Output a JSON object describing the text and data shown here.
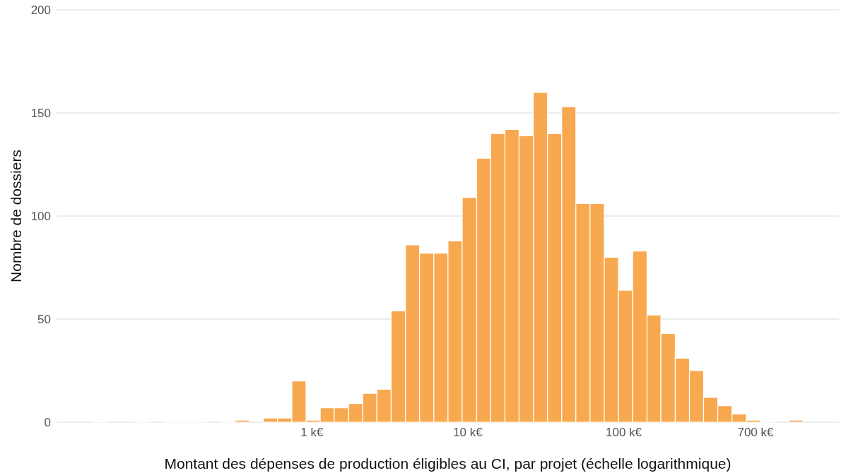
{
  "chart_data": {
    "type": "histogram",
    "xlabel": "Montant des dépenses de production éligibles au CI, par projet (échelle logarithmique)",
    "ylabel": "Nombre de dossiers",
    "bins": [
      39.4,
      48.6,
      73.9,
      91.1,
      112,
      139,
      171,
      211,
      260,
      321,
      396,
      488,
      602,
      743,
      916,
      1130,
      1390,
      1720,
      2120,
      2610,
      3220,
      3980,
      4900,
      6050,
      7460,
      9200,
      11400,
      14000,
      17300,
      21300,
      26300,
      32400,
      40000,
      49300,
      60800,
      75000,
      92500,
      114000,
      141000,
      173000,
      214000,
      264000,
      325000,
      401000,
      495000,
      611000,
      753000,
      929000,
      1150000,
      1410000
    ],
    "values": [
      0.3,
      0,
      0.3,
      0,
      0.3,
      0.3,
      0.3,
      0,
      0.3,
      1,
      0,
      2,
      2,
      20,
      1,
      7,
      7,
      9,
      14,
      16,
      54,
      86,
      82,
      82,
      88,
      109,
      128,
      140,
      142,
      139,
      160,
      140,
      153,
      106,
      106,
      80,
      64,
      83,
      52,
      43,
      31,
      25,
      12,
      8,
      4,
      1,
      0.3,
      0,
      1
    ],
    "color": "#f8a84f",
    "log": "x",
    "xlim": [
      23,
      2400000
    ],
    "xticks": [
      {
        "value": 1000,
        "label": "1 k€"
      },
      {
        "value": 10000,
        "label": "10 k€"
      },
      {
        "value": 100000,
        "label": "100 k€"
      },
      {
        "value": 700000,
        "label": "700 k€"
      }
    ],
    "ylim": [
      0,
      200
    ],
    "yticks": [
      0,
      50,
      100,
      150,
      200
    ],
    "grid": "y"
  }
}
